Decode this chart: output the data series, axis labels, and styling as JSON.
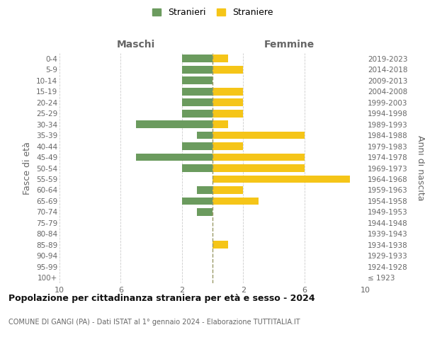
{
  "age_groups": [
    "100+",
    "95-99",
    "90-94",
    "85-89",
    "80-84",
    "75-79",
    "70-74",
    "65-69",
    "60-64",
    "55-59",
    "50-54",
    "45-49",
    "40-44",
    "35-39",
    "30-34",
    "25-29",
    "20-24",
    "15-19",
    "10-14",
    "5-9",
    "0-4"
  ],
  "birth_years": [
    "≤ 1923",
    "1924-1928",
    "1929-1933",
    "1934-1938",
    "1939-1943",
    "1944-1948",
    "1949-1953",
    "1954-1958",
    "1959-1963",
    "1964-1968",
    "1969-1973",
    "1974-1978",
    "1979-1983",
    "1984-1988",
    "1989-1993",
    "1994-1998",
    "1999-2003",
    "2004-2008",
    "2009-2013",
    "2014-2018",
    "2019-2023"
  ],
  "maschi": [
    0,
    0,
    0,
    0,
    0,
    0,
    1,
    2,
    1,
    0,
    2,
    5,
    2,
    1,
    5,
    2,
    2,
    2,
    2,
    2,
    2
  ],
  "femmine": [
    0,
    0,
    0,
    1,
    0,
    0,
    0,
    3,
    2,
    9,
    6,
    6,
    2,
    6,
    1,
    2,
    2,
    2,
    0,
    2,
    1
  ],
  "color_maschi": "#6b9b5e",
  "color_femmine": "#f5c518",
  "title": "Popolazione per cittadinanza straniera per età e sesso - 2024",
  "subtitle": "COMUNE DI GANGI (PA) - Dati ISTAT al 1° gennaio 2024 - Elaborazione TUTTITALIA.IT",
  "ylabel_left": "Fasce di età",
  "ylabel_right": "Anni di nascita",
  "label_maschi": "Maschi",
  "label_femmine": "Femmine",
  "legend_maschi": "Stranieri",
  "legend_femmine": "Straniere",
  "xlim": 10,
  "background_color": "#ffffff",
  "grid_color": "#cccccc",
  "text_color": "#666666",
  "title_color": "#111111"
}
